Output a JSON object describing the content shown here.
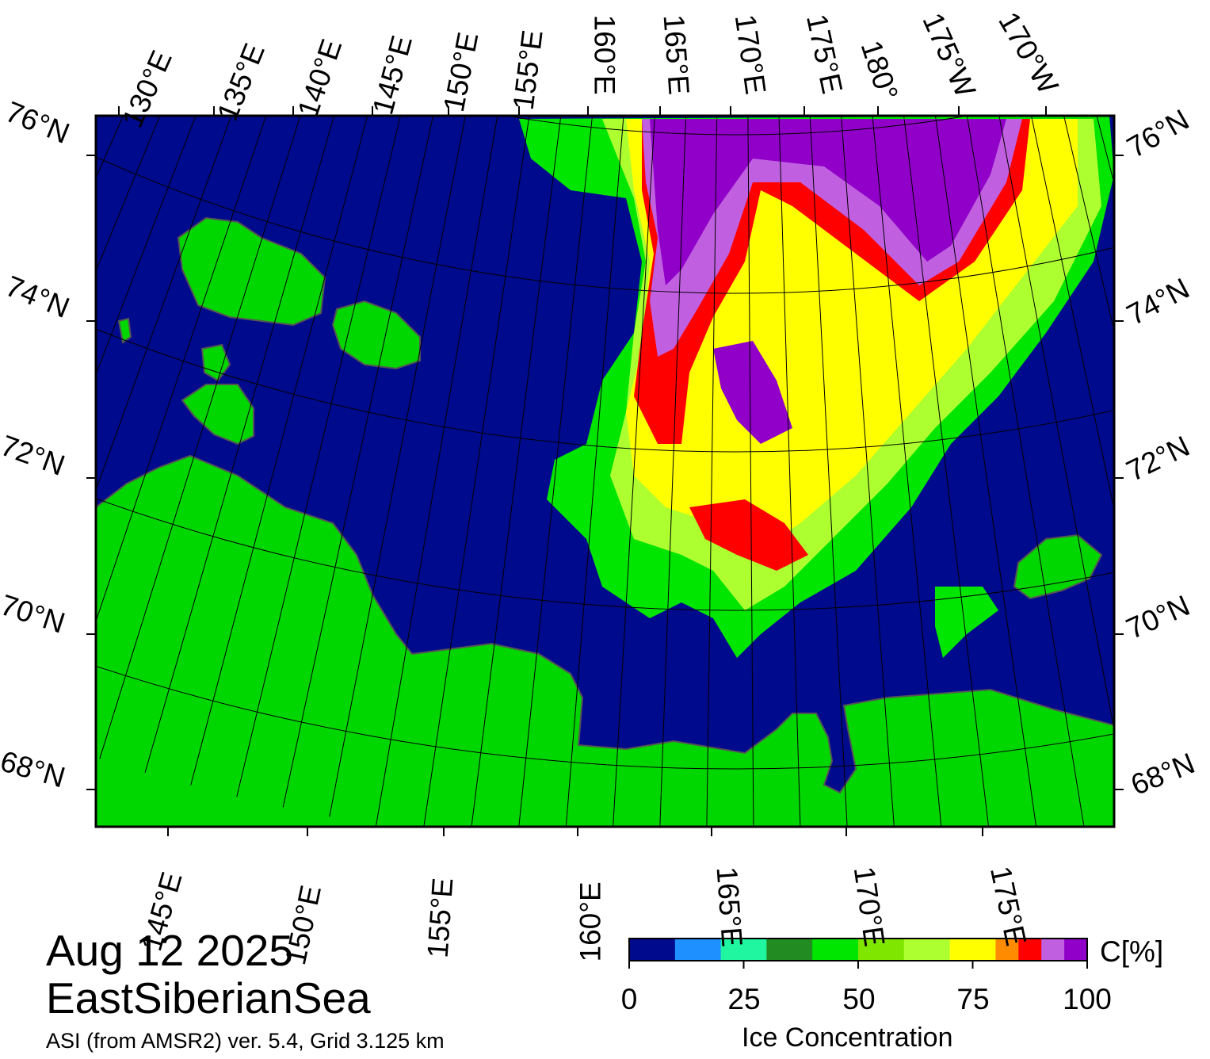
{
  "map": {
    "date": "Aug 12 2025",
    "region": "EastSiberianSea",
    "source": "ASI (from AMSR2) ver. 5.4,  Grid 3.125 km",
    "top_lon_labels": [
      "130°E",
      "135°E",
      "140°E",
      "145°E",
      "150°E",
      "155°E",
      "160°E",
      "165°E",
      "170°E",
      "175°E",
      "180°",
      "175°W",
      "170°W"
    ],
    "bottom_lon_labels": [
      "145°E",
      "150°E",
      "155°E",
      "160°E",
      "165°E",
      "170°E",
      "175°E"
    ],
    "left_lat_labels": [
      "76°N",
      "74°N",
      "72°N",
      "70°N",
      "68°N"
    ],
    "right_lat_labels": [
      "76°N",
      "74°N",
      "72°N",
      "70°N",
      "68°N"
    ],
    "colors": {
      "ocean": "#000a8c",
      "land": "#00d600",
      "land_missing": "#888888",
      "frame": "#000000"
    }
  },
  "colorbar": {
    "title": "Ice Concentration",
    "unit": "C[%]",
    "ticks": [
      "0",
      "25",
      "50",
      "75",
      "100"
    ],
    "bins": [
      {
        "range": "0-10",
        "color": "#000a8c"
      },
      {
        "range": "10-20",
        "color": "#1e90ff"
      },
      {
        "range": "20-30",
        "color": "#20f5a0"
      },
      {
        "range": "30-40",
        "color": "#228b22"
      },
      {
        "range": "40-50",
        "color": "#00e600"
      },
      {
        "range": "50-60",
        "color": "#7fe600"
      },
      {
        "range": "60-70",
        "color": "#adff2f"
      },
      {
        "range": "70-80",
        "color": "#ffff00"
      },
      {
        "range": "80-85",
        "color": "#ff8c00"
      },
      {
        "range": "85-90",
        "color": "#ff0000"
      },
      {
        "range": "90-95",
        "color": "#c060e0"
      },
      {
        "range": "95-100",
        "color": "#9000c8"
      }
    ]
  }
}
